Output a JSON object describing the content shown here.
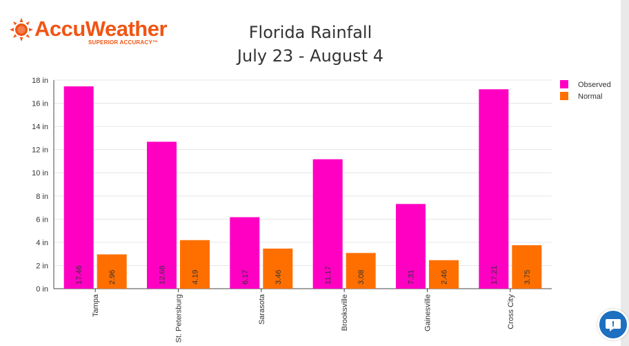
{
  "brand": {
    "name": "AccuWeather",
    "tagline": "SUPERIOR ACCURACY™",
    "color": "#f05514"
  },
  "header": {
    "title_line1": "Florida Rainfall",
    "title_line2": "July 23 - August 4"
  },
  "chart_data": {
    "type": "bar",
    "categories": [
      "Tampa",
      "St. Petersburg",
      "Sarasota",
      "Brooksville",
      "Gainesville",
      "Cross City"
    ],
    "series": [
      {
        "name": "Observed",
        "color": "#ff00c3",
        "values": [
          17.46,
          12.68,
          6.17,
          11.17,
          7.31,
          17.21
        ]
      },
      {
        "name": "Normal",
        "color": "#ff6f00",
        "values": [
          2.96,
          4.19,
          3.46,
          3.08,
          2.46,
          3.75
        ]
      }
    ],
    "value_labels": {
      "Observed": [
        "17.46",
        "12.68",
        "6.17",
        "11.17",
        "7.31",
        "17.21"
      ],
      "Normal": [
        "2.96",
        "4.19",
        "3.46",
        "3.08",
        "2.46",
        "3.75"
      ]
    },
    "yticks": [
      "0 in",
      "2 in",
      "4 in",
      "6 in",
      "8 in",
      "10 in",
      "12 in",
      "14 in",
      "16 in",
      "18 in"
    ],
    "ylim": [
      0,
      18
    ],
    "ytick_step": 2,
    "grid": true,
    "legend_position": "top-right"
  },
  "help_button": {
    "icon": "chat-icon",
    "color": "#1d6fbf"
  }
}
